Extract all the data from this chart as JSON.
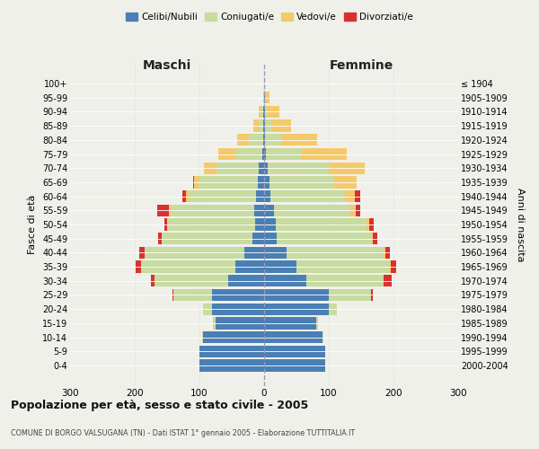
{
  "age_groups": [
    "0-4",
    "5-9",
    "10-14",
    "15-19",
    "20-24",
    "25-29",
    "30-34",
    "35-39",
    "40-44",
    "45-49",
    "50-54",
    "55-59",
    "60-64",
    "65-69",
    "70-74",
    "75-79",
    "80-84",
    "85-89",
    "90-94",
    "95-99",
    "100+"
  ],
  "birth_years": [
    "2000-2004",
    "1995-1999",
    "1990-1994",
    "1985-1989",
    "1980-1984",
    "1975-1979",
    "1970-1974",
    "1965-1969",
    "1960-1964",
    "1955-1959",
    "1950-1954",
    "1945-1949",
    "1940-1944",
    "1935-1939",
    "1930-1934",
    "1925-1929",
    "1920-1924",
    "1915-1919",
    "1910-1914",
    "1905-1909",
    "≤ 1904"
  ],
  "colors": {
    "celibi": "#4a7fb5",
    "coniugati": "#c8dba0",
    "vedovi": "#f5c96a",
    "divorziati": "#d93030"
  },
  "male": {
    "celibi": [
      100,
      100,
      95,
      75,
      80,
      80,
      55,
      45,
      30,
      18,
      14,
      15,
      12,
      10,
      8,
      3,
      2,
      1,
      1,
      0,
      0
    ],
    "coniugati": [
      0,
      0,
      1,
      4,
      15,
      60,
      115,
      145,
      155,
      140,
      135,
      130,
      105,
      90,
      65,
      40,
      22,
      8,
      4,
      1,
      0
    ],
    "vedovi": [
      0,
      0,
      0,
      0,
      0,
      0,
      0,
      0,
      0,
      1,
      1,
      2,
      4,
      8,
      20,
      28,
      18,
      8,
      4,
      1,
      0
    ],
    "divorziati": [
      0,
      0,
      0,
      0,
      0,
      2,
      5,
      8,
      8,
      5,
      4,
      18,
      5,
      2,
      0,
      0,
      0,
      0,
      0,
      0,
      0
    ]
  },
  "female": {
    "celibi": [
      95,
      95,
      90,
      80,
      100,
      100,
      65,
      50,
      35,
      20,
      18,
      15,
      10,
      8,
      5,
      3,
      2,
      2,
      1,
      1,
      0
    ],
    "coniugati": [
      0,
      0,
      1,
      4,
      12,
      65,
      120,
      145,
      150,
      145,
      140,
      118,
      115,
      100,
      95,
      55,
      25,
      10,
      4,
      1,
      0
    ],
    "vedovi": [
      0,
      0,
      0,
      0,
      0,
      0,
      0,
      1,
      2,
      3,
      4,
      8,
      15,
      35,
      55,
      70,
      55,
      30,
      18,
      6,
      2
    ],
    "divorziati": [
      0,
      0,
      0,
      0,
      1,
      3,
      12,
      8,
      8,
      7,
      7,
      8,
      8,
      0,
      0,
      0,
      0,
      0,
      0,
      0,
      0
    ]
  },
  "xlim": 300,
  "title": "Popolazione per età, sesso e stato civile - 2005",
  "subtitle": "COMUNE DI BORGO VALSUGANA (TN) - Dati ISTAT 1° gennaio 2005 - Elaborazione TUTTITALIA.IT",
  "ylabel_left": "Fasce di età",
  "ylabel_right": "Anni di nascita",
  "bg_color": "#f0f0eb",
  "bar_height": 0.85
}
